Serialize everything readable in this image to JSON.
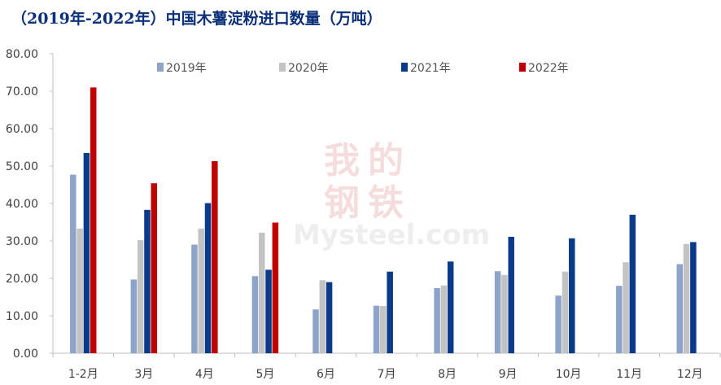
{
  "chart_data": {
    "type": "bar",
    "title": "（2019年-2022年）中国木薯淀粉进口数量（万吨）",
    "xlabel": "",
    "ylabel": "",
    "ylim": [
      0,
      80
    ],
    "y_ticks": [
      "0.00",
      "10.00",
      "20.00",
      "30.00",
      "40.00",
      "50.00",
      "60.00",
      "70.00",
      "80.00"
    ],
    "categories": [
      "1-2月",
      "3月",
      "4月",
      "5月",
      "6月",
      "7月",
      "8月",
      "9月",
      "10月",
      "11月",
      "12月"
    ],
    "legend_position": "top",
    "grid": false,
    "series": [
      {
        "name": "2019年",
        "color": "#8da3c9",
        "values": [
          47.7,
          19.7,
          29.0,
          20.6,
          11.7,
          12.7,
          17.4,
          21.9,
          15.4,
          18.0,
          23.8
        ]
      },
      {
        "name": "2020年",
        "color": "#c3c3c3",
        "values": [
          33.3,
          30.2,
          33.3,
          32.2,
          19.5,
          12.6,
          18.1,
          20.9,
          21.8,
          24.3,
          29.2
        ]
      },
      {
        "name": "2021年",
        "color": "#0a3a8a",
        "values": [
          53.5,
          38.3,
          40.1,
          22.3,
          19.0,
          21.8,
          24.5,
          31.1,
          30.7,
          37.0,
          29.7
        ]
      },
      {
        "name": "2022年",
        "color": "#c00000",
        "values": [
          71.0,
          45.4,
          51.3,
          34.9,
          null,
          null,
          null,
          null,
          null,
          null,
          null
        ]
      }
    ],
    "watermark": {
      "chars": [
        "我",
        "的",
        "钢",
        "铁"
      ],
      "text": "Mysteel.com"
    }
  }
}
